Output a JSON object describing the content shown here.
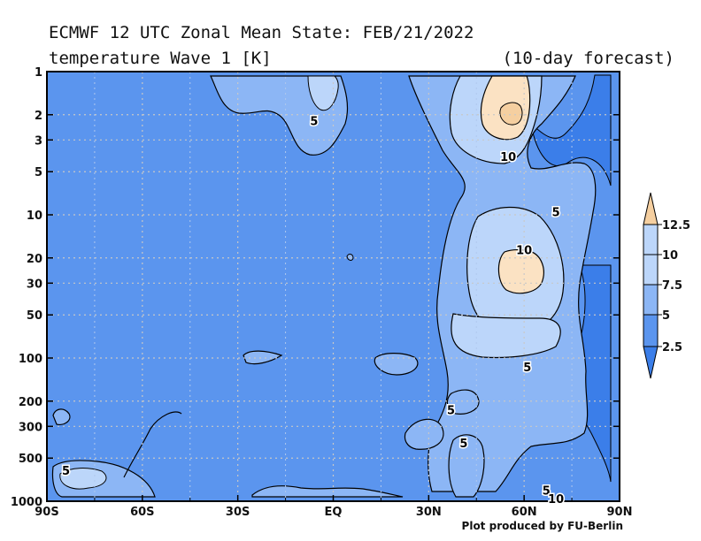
{
  "chart_data": {
    "type": "heatmap",
    "title": "ECMWF 12 UTC Zonal Mean State: FEB/21/2022",
    "subtitle": "temperature Wave 1 [K]",
    "forecast_note": "(10-day forecast)",
    "credit": "Plot produced by FU-Berlin",
    "x_ticks": [
      {
        "label": "90S",
        "lat": -90
      },
      {
        "label": "60S",
        "lat": -60
      },
      {
        "label": "30S",
        "lat": -30
      },
      {
        "label": "EQ",
        "lat": 0
      },
      {
        "label": "30N",
        "lat": 30
      },
      {
        "label": "60N",
        "lat": 60
      },
      {
        "label": "90N",
        "lat": 90
      }
    ],
    "y_ticks": [
      {
        "label": "1",
        "p": 1
      },
      {
        "label": "2",
        "p": 2
      },
      {
        "label": "3",
        "p": 3
      },
      {
        "label": "5",
        "p": 5
      },
      {
        "label": "10",
        "p": 10
      },
      {
        "label": "20",
        "p": 20
      },
      {
        "label": "30",
        "p": 30
      },
      {
        "label": "50",
        "p": 50
      },
      {
        "label": "100",
        "p": 100
      },
      {
        "label": "200",
        "p": 200
      },
      {
        "label": "300",
        "p": 300
      },
      {
        "label": "500",
        "p": 500
      },
      {
        "label": "1000",
        "p": 1000
      }
    ],
    "xlim": [
      -90,
      90
    ],
    "ylim": [
      1000,
      1
    ],
    "y_scale": "log",
    "grid": true,
    "colorbar": {
      "levels": [
        2.5,
        5,
        7.5,
        10,
        12.5
      ],
      "labels": [
        "2.5",
        "5",
        "7.5",
        "10",
        "12.5"
      ],
      "colors": [
        "#5b95ee",
        "#8cb6f5",
        "#bcd6fa",
        "#fbe2c3"
      ],
      "extend_low_color": "#3b7ee9",
      "extend_high_color": "#f5cfa0"
    },
    "contour_labels": [
      {
        "text": "5",
        "lat": -6,
        "p": 2.2
      },
      {
        "text": "10",
        "lat": 55,
        "p": 3.9
      },
      {
        "text": "5",
        "lat": 70,
        "p": 9.5
      },
      {
        "text": "10",
        "lat": 60,
        "p": 17.5
      },
      {
        "text": "5",
        "lat": 61,
        "p": 115
      },
      {
        "text": "5",
        "lat": 37,
        "p": 230
      },
      {
        "text": "5",
        "lat": 41,
        "p": 390
      },
      {
        "text": "5",
        "lat": -84,
        "p": 610
      },
      {
        "text": "5",
        "lat": 67,
        "p": 840
      },
      {
        "text": "10",
        "lat": 70,
        "p": 960
      }
    ],
    "colors": {
      "base": "#5b95ee",
      "light": "#8cb6f5",
      "lighter": "#bcd6fa",
      "warm": "#fbe2c3",
      "dark": "#3b7ee9"
    }
  }
}
